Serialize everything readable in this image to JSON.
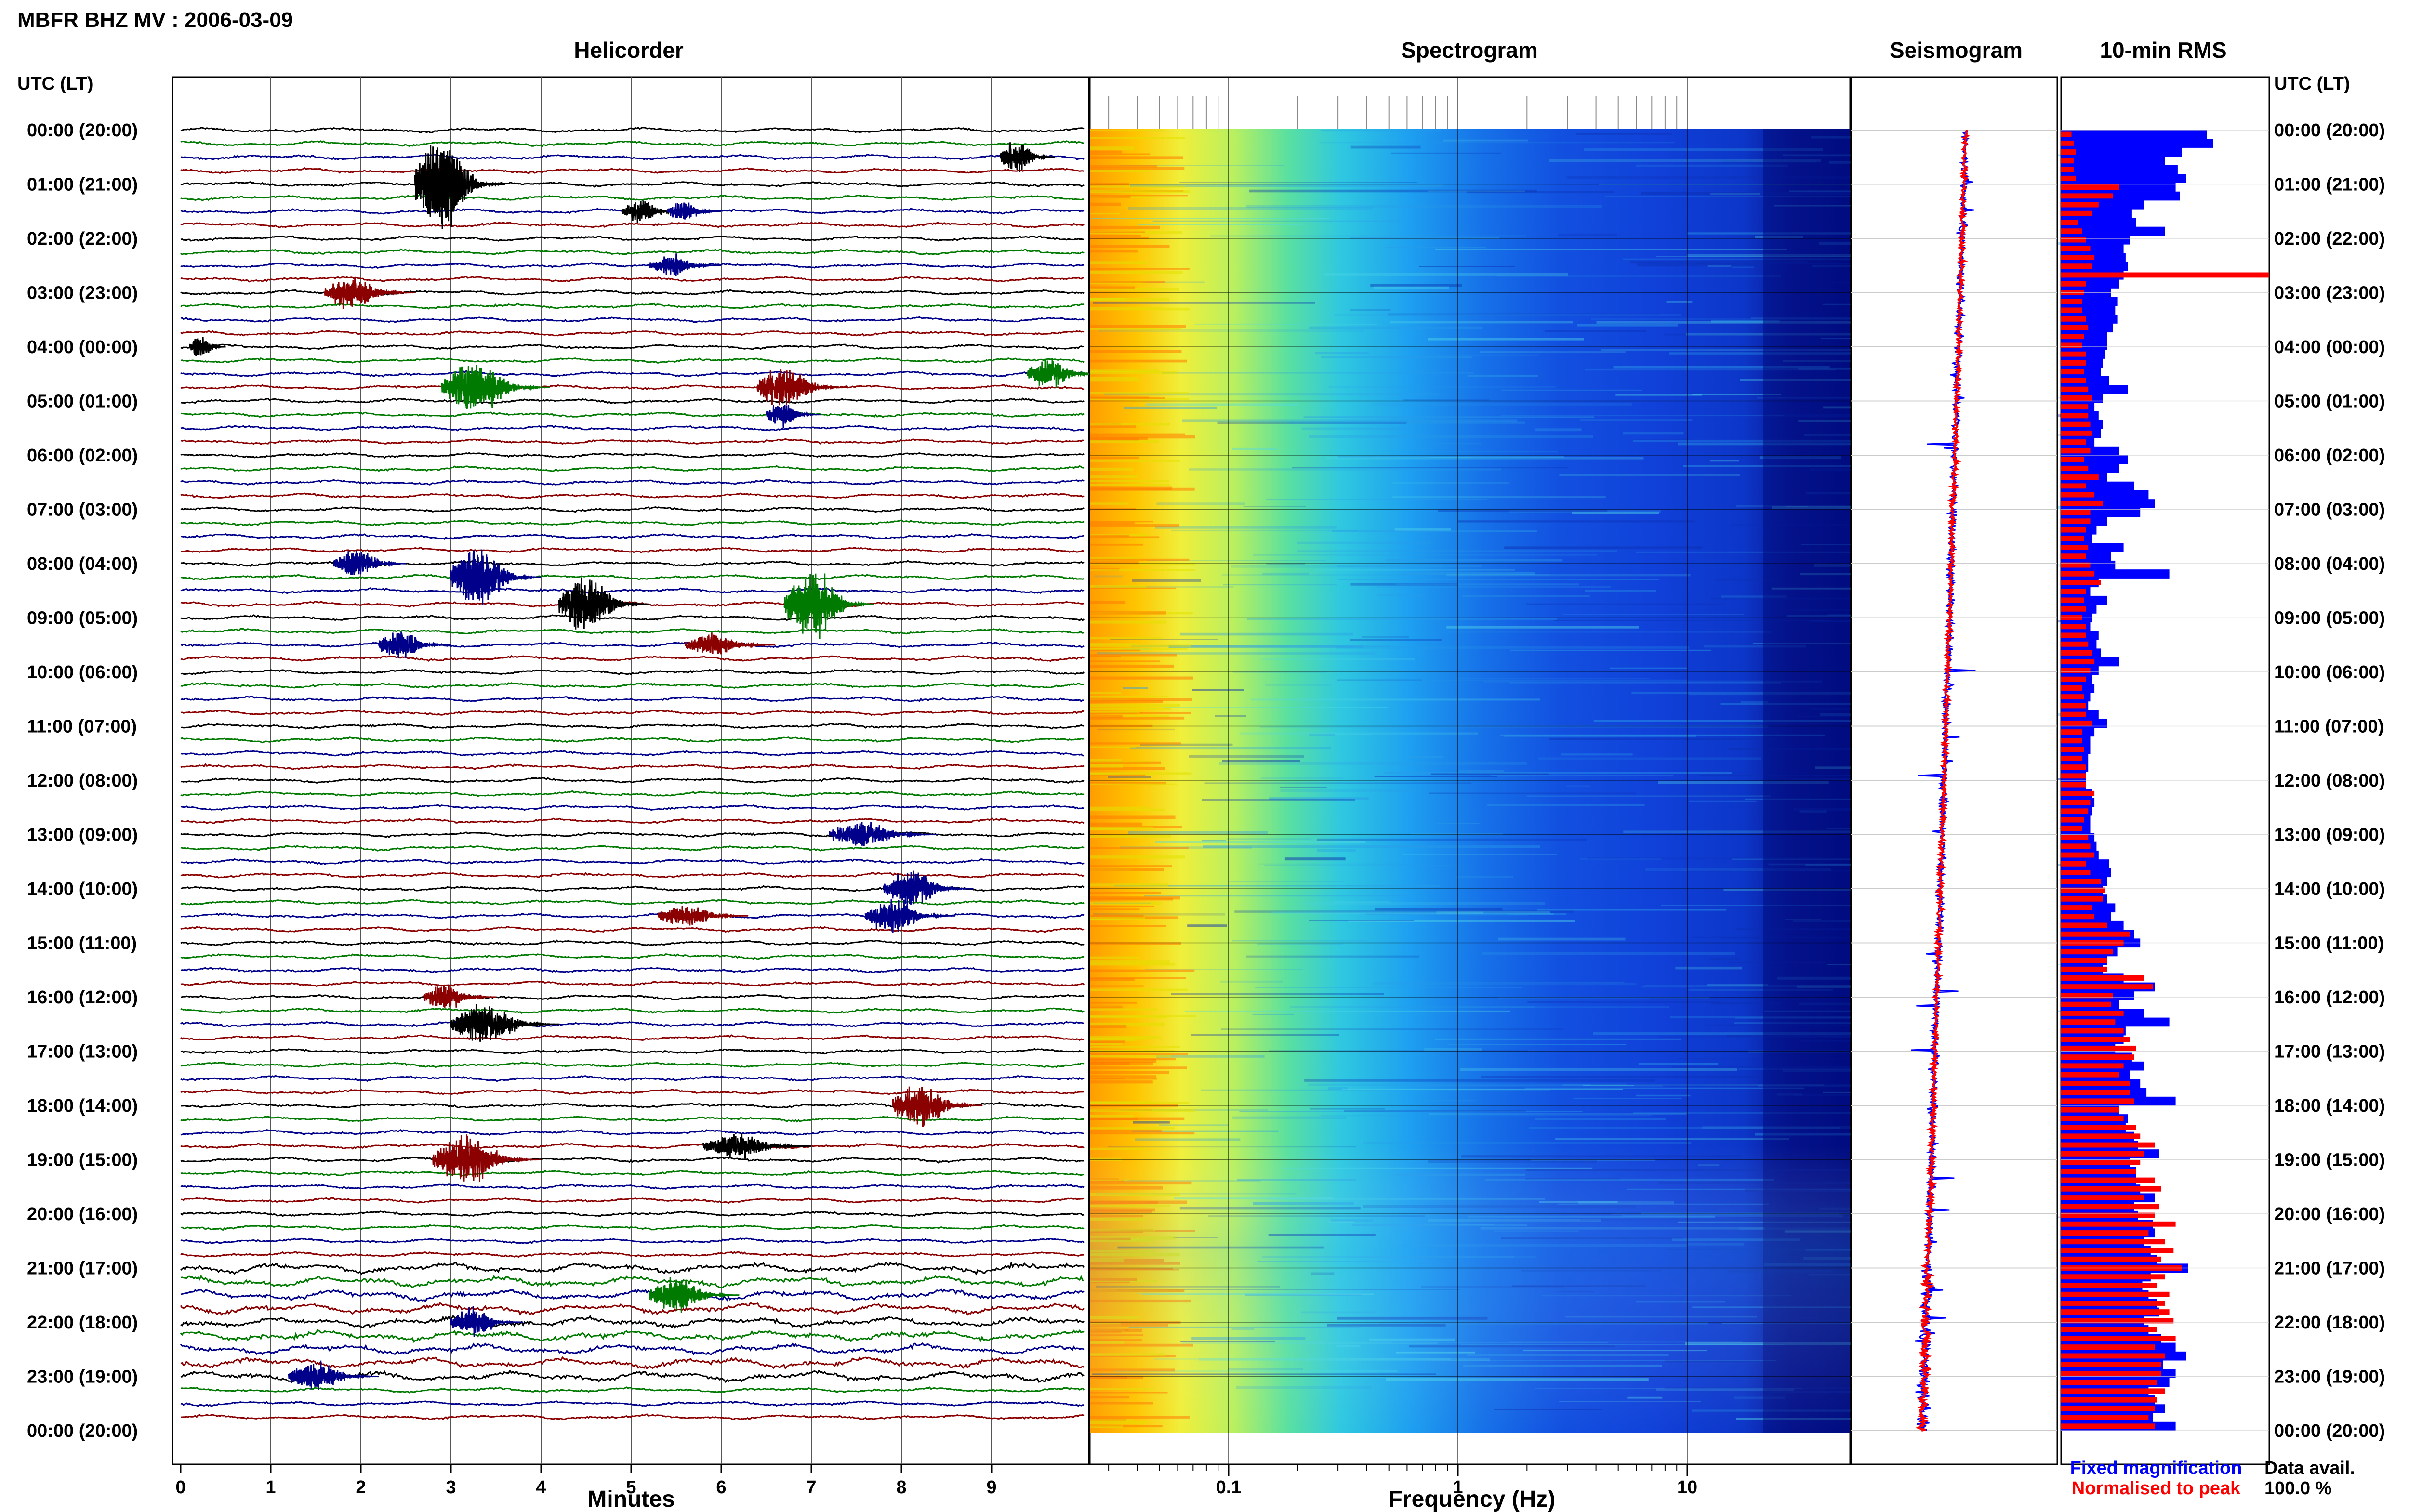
{
  "title": "MBFR BHZ MV : 2006-03-09",
  "left_axis_header": "UTC (LT)",
  "right_axis_header": "UTC (LT)",
  "time_labels": [
    "00:00 (20:00)",
    "01:00 (21:00)",
    "02:00 (22:00)",
    "03:00 (23:00)",
    "04:00 (00:00)",
    "05:00 (01:00)",
    "06:00 (02:00)",
    "07:00 (03:00)",
    "08:00 (04:00)",
    "09:00 (05:00)",
    "10:00 (06:00)",
    "11:00 (07:00)",
    "12:00 (08:00)",
    "13:00 (09:00)",
    "14:00 (10:00)",
    "15:00 (11:00)",
    "16:00 (12:00)",
    "17:00 (13:00)",
    "18:00 (14:00)",
    "19:00 (15:00)",
    "20:00 (16:00)",
    "21:00 (17:00)",
    "22:00 (18:00)",
    "23:00 (19:00)",
    "00:00 (20:00)"
  ],
  "panels": {
    "helicorder": {
      "title": "Helicorder",
      "xlabel": "Minutes",
      "x_ticks": [
        "0",
        "1",
        "2",
        "3",
        "4",
        "5",
        "6",
        "7",
        "8",
        "9"
      ]
    },
    "spectrogram": {
      "title": "Spectrogram",
      "xlabel": "Frequency (Hz)",
      "x_ticks": [
        "0.1",
        "1",
        "10"
      ],
      "x_scale": "log"
    },
    "seismogram": {
      "title": "Seismogram"
    },
    "rms": {
      "title": "10-min RMS"
    }
  },
  "legend": {
    "fixed": "Fixed magnification",
    "normalised": "Normalised to peak"
  },
  "data_avail": {
    "label": "Data avail.",
    "value": "100.0 %"
  },
  "colors": {
    "trace_cycle": [
      "#000000",
      "#007a00",
      "#00008b",
      "#8b0000"
    ],
    "fixed": "#0000ff",
    "normalised": "#ff0000"
  },
  "chart_data": {
    "type": "helicorder",
    "hours": 24,
    "lines_per_hour": 4,
    "minutes_per_line": 10,
    "events": [
      {
        "line": 4,
        "minute": 2.6,
        "amplitude": 3.2,
        "duration": 1.0,
        "color": "black"
      },
      {
        "line": 2,
        "minute": 9.1,
        "amplitude": 1.2,
        "duration": 0.6,
        "color": "black"
      },
      {
        "line": 6,
        "minute": 4.9,
        "amplitude": 0.8,
        "duration": 0.7,
        "color": "black"
      },
      {
        "line": 6,
        "minute": 5.4,
        "amplitude": 0.7,
        "duration": 0.6,
        "color": "blue"
      },
      {
        "line": 10,
        "minute": 5.2,
        "amplitude": 0.7,
        "duration": 0.8,
        "color": "blue"
      },
      {
        "line": 12,
        "minute": 1.6,
        "amplitude": 1.0,
        "duration": 1.0,
        "color": "red"
      },
      {
        "line": 19,
        "minute": 2.9,
        "amplitude": 1.8,
        "duration": 1.2,
        "color": "green"
      },
      {
        "line": 19,
        "minute": 6.4,
        "amplitude": 1.4,
        "duration": 1.0,
        "color": "red"
      },
      {
        "line": 18,
        "minute": 9.4,
        "amplitude": 1.0,
        "duration": 0.8,
        "color": "green"
      },
      {
        "line": 16,
        "minute": 0.1,
        "amplitude": 0.9,
        "duration": 0.4,
        "color": "black"
      },
      {
        "line": 21,
        "minute": 6.5,
        "amplitude": 0.8,
        "duration": 0.6,
        "color": "blue"
      },
      {
        "line": 33,
        "minute": 3.0,
        "amplitude": 2.0,
        "duration": 1.0,
        "color": "blue"
      },
      {
        "line": 32,
        "minute": 1.7,
        "amplitude": 1.0,
        "duration": 0.8,
        "color": "blue"
      },
      {
        "line": 35,
        "minute": 4.2,
        "amplitude": 2.0,
        "duration": 1.0,
        "color": "black"
      },
      {
        "line": 35,
        "minute": 6.7,
        "amplitude": 2.4,
        "duration": 1.0,
        "color": "green"
      },
      {
        "line": 38,
        "minute": 2.2,
        "amplitude": 1.0,
        "duration": 0.8,
        "color": "blue"
      },
      {
        "line": 38,
        "minute": 5.6,
        "amplitude": 0.8,
        "duration": 1.0,
        "color": "red"
      },
      {
        "line": 52,
        "minute": 7.2,
        "amplitude": 0.9,
        "duration": 1.2,
        "color": "blue"
      },
      {
        "line": 56,
        "minute": 7.8,
        "amplitude": 1.2,
        "duration": 1.0,
        "color": "blue"
      },
      {
        "line": 58,
        "minute": 7.6,
        "amplitude": 1.2,
        "duration": 1.0,
        "color": "blue"
      },
      {
        "line": 58,
        "minute": 5.3,
        "amplitude": 0.8,
        "duration": 1.0,
        "color": "red"
      },
      {
        "line": 66,
        "minute": 3.0,
        "amplitude": 1.4,
        "duration": 1.2,
        "color": "black"
      },
      {
        "line": 64,
        "minute": 2.7,
        "amplitude": 0.9,
        "duration": 0.8,
        "color": "red"
      },
      {
        "line": 72,
        "minute": 7.9,
        "amplitude": 1.4,
        "duration": 1.0,
        "color": "red"
      },
      {
        "line": 76,
        "minute": 2.8,
        "amplitude": 1.6,
        "duration": 1.2,
        "color": "red"
      },
      {
        "line": 75,
        "minute": 5.8,
        "amplitude": 0.9,
        "duration": 1.2,
        "color": "black"
      },
      {
        "line": 86,
        "minute": 5.2,
        "amplitude": 1.2,
        "duration": 1.0,
        "color": "green"
      },
      {
        "line": 88,
        "minute": 3.0,
        "amplitude": 1.0,
        "duration": 0.8,
        "color": "blue"
      },
      {
        "line": 92,
        "minute": 1.2,
        "amplitude": 1.0,
        "duration": 1.0,
        "color": "blue"
      }
    ],
    "rms_fixed": [
      0.7,
      0.73,
      0.58,
      0.5,
      0.56,
      0.6,
      0.55,
      0.57,
      0.4,
      0.34,
      0.36,
      0.5,
      0.33,
      0.3,
      0.31,
      0.32,
      0.3,
      0.28,
      0.24,
      0.27,
      0.26,
      0.27,
      0.25,
      0.22,
      0.22,
      0.21,
      0.2,
      0.19,
      0.23,
      0.32,
      0.2,
      0.16,
      0.18,
      0.2,
      0.19,
      0.16,
      0.28,
      0.32,
      0.28,
      0.22,
      0.35,
      0.42,
      0.45,
      0.38,
      0.22,
      0.17,
      0.15,
      0.3,
      0.24,
      0.26,
      0.52,
      0.18,
      0.14,
      0.22,
      0.17,
      0.15,
      0.14,
      0.18,
      0.17,
      0.19,
      0.28,
      0.18,
      0.15,
      0.16,
      0.14,
      0.13,
      0.18,
      0.22,
      0.16,
      0.14,
      0.14,
      0.13,
      0.13,
      0.12,
      0.12,
      0.15,
      0.16,
      0.15,
      0.14,
      0.14,
      0.16,
      0.17,
      0.18,
      0.23,
      0.24,
      0.22,
      0.2,
      0.22,
      0.26,
      0.24,
      0.3,
      0.35,
      0.38,
      0.27,
      0.22,
      0.2,
      0.3,
      0.45,
      0.35,
      0.28,
      0.4,
      0.52,
      0.31,
      0.3,
      0.26,
      0.34,
      0.4,
      0.33,
      0.38,
      0.41,
      0.55,
      0.28,
      0.32,
      0.31,
      0.35,
      0.37,
      0.47,
      0.33,
      0.36,
      0.36,
      0.38,
      0.45,
      0.35,
      0.37,
      0.44,
      0.45,
      0.4,
      0.43,
      0.46,
      0.61,
      0.43,
      0.39,
      0.42,
      0.46,
      0.47,
      0.4,
      0.42,
      0.48,
      0.55,
      0.6,
      0.49,
      0.55,
      0.52,
      0.42,
      0.45,
      0.5,
      0.44,
      0.55
    ],
    "rms_normalised": [
      0.05,
      0.06,
      0.07,
      0.06,
      0.06,
      0.07,
      0.28,
      0.25,
      0.18,
      0.15,
      0.08,
      0.1,
      0.12,
      0.14,
      0.16,
      0.15,
      1.0,
      0.12,
      0.11,
      0.1,
      0.1,
      0.12,
      0.13,
      0.11,
      0.1,
      0.12,
      0.12,
      0.11,
      0.12,
      0.13,
      0.15,
      0.13,
      0.13,
      0.14,
      0.15,
      0.12,
      0.14,
      0.11,
      0.13,
      0.18,
      0.12,
      0.16,
      0.2,
      0.14,
      0.14,
      0.12,
      0.11,
      0.13,
      0.12,
      0.14,
      0.16,
      0.19,
      0.12,
      0.11,
      0.12,
      0.1,
      0.12,
      0.12,
      0.13,
      0.15,
      0.16,
      0.14,
      0.12,
      0.1,
      0.11,
      0.12,
      0.12,
      0.15,
      0.1,
      0.1,
      0.11,
      0.1,
      0.12,
      0.12,
      0.12,
      0.16,
      0.14,
      0.13,
      0.11,
      0.1,
      0.13,
      0.14,
      0.16,
      0.12,
      0.14,
      0.19,
      0.21,
      0.2,
      0.15,
      0.16,
      0.22,
      0.33,
      0.3,
      0.25,
      0.22,
      0.22,
      0.4,
      0.44,
      0.25,
      0.24,
      0.3,
      0.26,
      0.3,
      0.33,
      0.36,
      0.35,
      0.3,
      0.28,
      0.33,
      0.33,
      0.35,
      0.28,
      0.3,
      0.36,
      0.38,
      0.45,
      0.4,
      0.38,
      0.36,
      0.45,
      0.48,
      0.4,
      0.47,
      0.45,
      0.55,
      0.42,
      0.5,
      0.54,
      0.48,
      0.58,
      0.5,
      0.46,
      0.52,
      0.5,
      0.52,
      0.54,
      0.46,
      0.55,
      0.45,
      0.5,
      0.48,
      0.48,
      0.46,
      0.5,
      0.46,
      0.45,
      0.42,
      0.45
    ]
  }
}
